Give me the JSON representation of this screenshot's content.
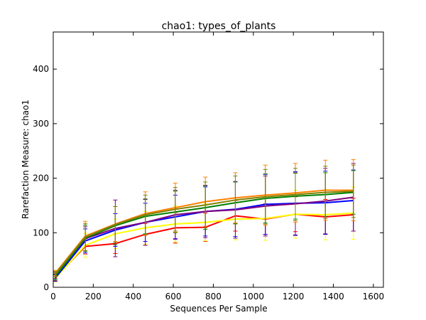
{
  "chart_data": {
    "type": "line",
    "title": "chao1: types_of_plants",
    "xlabel": "Sequences Per Sample",
    "ylabel": "Rarefaction Measure: chao1",
    "xlim": [
      0,
      1650
    ],
    "ylim": [
      0,
      468
    ],
    "xticks": [
      0,
      200,
      400,
      600,
      800,
      1000,
      1200,
      1400,
      1600
    ],
    "yticks": [
      0,
      100,
      200,
      300,
      400
    ],
    "grid": false,
    "legend": "none",
    "x": [
      10,
      160,
      310,
      460,
      610,
      760,
      910,
      1060,
      1210,
      1360,
      1500
    ],
    "series": [
      {
        "color": "#ff0000",
        "values": [
          18,
          75,
          80,
          97,
          109,
          110,
          131,
          125,
          134,
          129,
          133
        ],
        "err": [
          6,
          14,
          18,
          20,
          28,
          26,
          28,
          28,
          32,
          32,
          30
        ]
      },
      {
        "color": "#ffff00",
        "values": [
          16,
          77,
          98,
          109,
          116,
          119,
          125,
          126,
          134,
          133,
          136
        ],
        "err": [
          6,
          22,
          27,
          30,
          33,
          34,
          38,
          40,
          44,
          46,
          48
        ]
      },
      {
        "color": "#0000ff",
        "values": [
          17,
          85,
          105,
          119,
          129,
          139,
          143,
          152,
          154,
          155,
          159
        ],
        "err": [
          6,
          22,
          30,
          35,
          40,
          45,
          50,
          55,
          58,
          58,
          56
        ]
      },
      {
        "color": "#7f007f",
        "values": [
          22,
          89,
          108,
          119,
          133,
          139,
          142,
          149,
          153,
          158,
          165
        ],
        "err": [
          6,
          22,
          52,
          42,
          45,
          48,
          52,
          55,
          58,
          60,
          62
        ]
      },
      {
        "color": "#008000",
        "values": [
          20,
          90,
          113,
          130,
          138,
          146,
          155,
          163,
          167,
          170,
          174
        ],
        "err": [
          6,
          24,
          35,
          32,
          38,
          40,
          38,
          45,
          42,
          40,
          40
        ]
      },
      {
        "color": "#ff8000",
        "values": [
          26,
          94,
          116,
          135,
          146,
          157,
          164,
          169,
          173,
          178,
          178
        ],
        "err": [
          5,
          27,
          32,
          40,
          45,
          45,
          46,
          55,
          54,
          55,
          56
        ]
      },
      {
        "color": "#808000",
        "values": [
          24,
          92,
          115,
          133,
          143,
          151,
          160,
          166,
          170,
          174,
          176
        ],
        "err": [
          5,
          25,
          33,
          36,
          40,
          42,
          44,
          50,
          48,
          48,
          48
        ]
      }
    ]
  }
}
